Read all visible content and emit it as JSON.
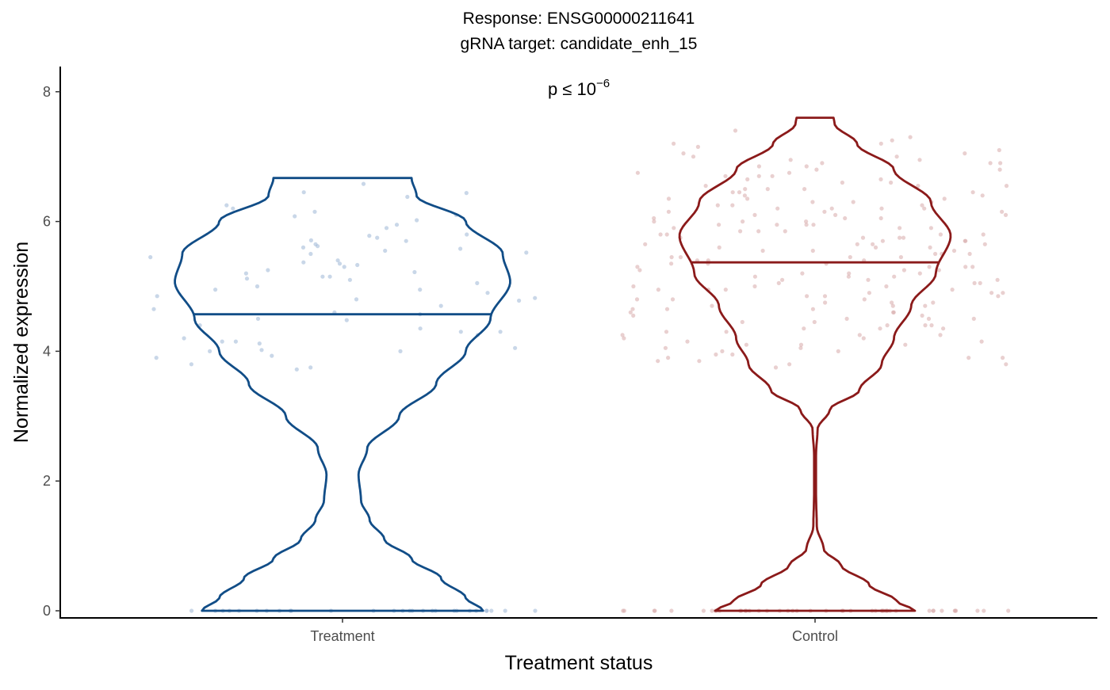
{
  "chart_data": {
    "type": "violin",
    "title": "Response: ENSG00000211641",
    "subtitle": "gRNA target: candidate_enh_15",
    "xlabel": "Treatment status",
    "ylabel": "Normalized expression",
    "annotation": {
      "prefix": "p ≤ 10",
      "exponent": "−6"
    },
    "ylim": [
      -0.1,
      8.4
    ],
    "yticks": [
      0,
      2,
      4,
      6,
      8
    ],
    "ytick_labels": [
      "0",
      "2",
      "4",
      "6",
      "8"
    ],
    "categories": [
      "Treatment",
      "Control"
    ],
    "grid": false,
    "series": [
      {
        "category": "Treatment",
        "color": "#114d87",
        "point_color": "#9db7d5",
        "median": 4.57,
        "y_min": 0.0,
        "y_max": 6.67,
        "density_profile": [
          [
            0.0,
            0.57
          ],
          [
            0.2,
            0.5
          ],
          [
            0.5,
            0.4
          ],
          [
            0.8,
            0.28
          ],
          [
            1.1,
            0.17
          ],
          [
            1.4,
            0.11
          ],
          [
            1.7,
            0.075
          ],
          [
            2.1,
            0.065
          ],
          [
            2.5,
            0.1
          ],
          [
            3.0,
            0.23
          ],
          [
            3.5,
            0.38
          ],
          [
            4.0,
            0.5
          ],
          [
            4.5,
            0.6
          ],
          [
            5.07,
            0.68
          ],
          [
            5.5,
            0.65
          ],
          [
            6.0,
            0.5
          ],
          [
            6.4,
            0.3
          ],
          [
            6.67,
            0.28
          ]
        ],
        "points_zero": 28,
        "points_nonzero": [
          5.71,
          6.15,
          5.8,
          4.95,
          4.0,
          3.93,
          6.08,
          5.3,
          5.52,
          5.15,
          4.7,
          4.15,
          5.62,
          4.9,
          6.44,
          5.25,
          4.8,
          5.05,
          4.35,
          3.8,
          5.75,
          4.2,
          6.02,
          5.37,
          4.57,
          5.12,
          3.72,
          6.45,
          5.5,
          4.05,
          5.65,
          4.85,
          5.2,
          4.4,
          6.38,
          5.45,
          4.12,
          5.0,
          3.75,
          6.2,
          5.58,
          4.6,
          5.33,
          4.25,
          5.9,
          4.95,
          3.9,
          6.58,
          5.15,
          4.48,
          5.7,
          4.02,
          5.4,
          4.78,
          6.25,
          5.1,
          4.3,
          5.55,
          4.65,
          5.95,
          4.0,
          5.6,
          4.3,
          5.22,
          4.5,
          6.1,
          4.82,
          5.35,
          4.15,
          5.78
        ]
      },
      {
        "category": "Control",
        "color": "#8b1a1a",
        "point_color": "#d7a9a9",
        "median": 5.37,
        "y_min": 0.0,
        "y_max": 7.6,
        "density_profile": [
          [
            0.0,
            0.405
          ],
          [
            0.15,
            0.33
          ],
          [
            0.4,
            0.22
          ],
          [
            0.7,
            0.105
          ],
          [
            0.95,
            0.035
          ],
          [
            1.3,
            0.007
          ],
          [
            1.8,
            0.004
          ],
          [
            2.4,
            0.004
          ],
          [
            2.8,
            0.01
          ],
          [
            3.1,
            0.06
          ],
          [
            3.4,
            0.18
          ],
          [
            3.8,
            0.27
          ],
          [
            4.2,
            0.32
          ],
          [
            4.7,
            0.39
          ],
          [
            5.2,
            0.49
          ],
          [
            5.78,
            0.55
          ],
          [
            6.3,
            0.47
          ],
          [
            6.8,
            0.32
          ],
          [
            7.2,
            0.17
          ],
          [
            7.5,
            0.08
          ],
          [
            7.6,
            0.075
          ]
        ],
        "points_zero": 46,
        "points_nonzero": [
          5.8,
          6.2,
          5.1,
          4.7,
          6.9,
          5.5,
          4.4,
          6.5,
          5.95,
          4.85,
          7.2,
          5.3,
          6.1,
          4.2,
          5.65,
          6.7,
          4.95,
          5.45,
          3.9,
          6.35,
          5.2,
          7.0,
          4.6,
          5.85,
          6.55,
          4.35,
          5.05,
          6.0,
          3.85,
          5.7,
          6.85,
          4.9,
          5.4,
          6.25,
          4.5,
          7.1,
          5.6,
          4.1,
          6.45,
          5.25,
          3.95,
          6.15,
          5.75,
          4.75,
          6.6,
          5.0,
          4.3,
          5.9,
          6.95,
          4.65,
          5.35,
          6.3,
          4.05,
          5.55,
          7.25,
          4.8,
          6.05,
          5.15,
          3.8,
          6.75,
          5.45,
          4.45,
          5.8,
          6.4,
          4.25,
          5.95,
          7.05,
          4.95,
          5.3,
          6.2,
          3.75,
          5.65,
          6.8,
          4.55,
          5.1,
          6.5,
          4.15,
          5.5,
          7.4,
          4.9,
          5.75,
          6.1,
          4.4,
          5.2,
          6.65,
          3.9,
          5.85,
          4.7,
          6.3,
          5.4,
          4.0,
          6.0,
          5.05,
          7.3,
          4.6,
          5.6,
          6.45,
          4.25,
          5.25,
          6.9,
          4.85,
          5.7,
          3.85,
          6.15,
          5.35,
          4.5,
          5.9,
          6.7,
          4.1,
          5.55,
          6.25,
          4.75,
          5.15,
          7.15,
          4.35,
          5.8,
          6.55,
          4.95,
          5.45,
          6.05,
          3.95,
          5.0,
          6.85,
          4.65,
          5.65,
          6.35,
          4.2,
          5.3,
          7.0,
          4.8,
          5.95,
          6.2,
          4.45,
          5.1,
          6.6,
          4.05,
          5.5,
          6.95,
          4.9,
          5.75,
          6.4,
          4.3,
          5.2,
          6.1,
          4.55,
          5.85,
          6.75,
          3.8,
          5.6,
          6.3,
          4.7,
          5.4,
          7.2,
          4.15,
          5.05,
          6.5,
          4.85,
          5.7,
          6.0,
          4.4,
          5.35,
          6.8,
          4.6,
          5.9,
          6.25,
          4.0,
          5.25,
          7.05,
          4.95,
          5.55,
          6.65,
          4.25,
          5.8,
          6.15,
          4.75,
          5.15,
          6.9,
          4.5,
          5.45,
          6.35,
          3.9,
          5.65,
          6.05,
          4.8,
          5.3,
          6.7,
          4.35,
          5.95,
          6.45,
          4.1,
          5.0,
          6.2,
          4.65,
          5.75,
          6.55
        ]
      }
    ]
  }
}
